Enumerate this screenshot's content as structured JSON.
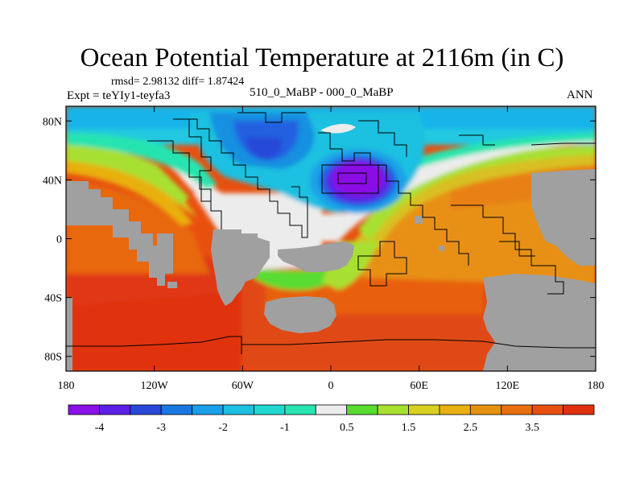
{
  "title": "Ocean Potential Temperature at 2116m (in C)",
  "stats": "rmsd= 2.98132 diff= 1.87424",
  "experiment": "Expt = teYIy1-teyfa3",
  "subtitle": "510_0_MaBP - 000_0_MaBP",
  "season": "ANN",
  "map": {
    "lon_range": [
      -180,
      180
    ],
    "lat_range": [
      -90,
      90
    ],
    "lon_ticks": [
      {
        "value": -180,
        "label": "180"
      },
      {
        "value": -120,
        "label": "120W"
      },
      {
        "value": -60,
        "label": "60W"
      },
      {
        "value": 0,
        "label": "0"
      },
      {
        "value": 60,
        "label": "60E"
      },
      {
        "value": 120,
        "label": "120E"
      },
      {
        "value": 180,
        "label": "180"
      }
    ],
    "lat_ticks": [
      {
        "value": 80,
        "label": "80N"
      },
      {
        "value": 40,
        "label": "40N"
      },
      {
        "value": 0,
        "label": "0"
      },
      {
        "value": -40,
        "label": "40S"
      },
      {
        "value": -80,
        "label": "80S"
      }
    ]
  },
  "colorbar": {
    "colors": [
      "#8a10e6",
      "#5a20e6",
      "#2848d8",
      "#1878e0",
      "#1aa0e8",
      "#1cc0e0",
      "#20d8d0",
      "#28e4b0",
      "#ececec",
      "#58dc30",
      "#a8e030",
      "#d8d020",
      "#e8b010",
      "#e89010",
      "#e87010",
      "#e85010",
      "#e03010"
    ],
    "labels": [
      {
        "index": 1,
        "label": "-4"
      },
      {
        "index": 3,
        "label": "-3"
      },
      {
        "index": 5,
        "label": "-2"
      },
      {
        "index": 7,
        "label": "-1"
      },
      {
        "index": 9,
        "label": "0.5"
      },
      {
        "index": 11,
        "label": "1.5"
      },
      {
        "index": 13,
        "label": "2.5"
      },
      {
        "index": 15,
        "label": "3.5"
      }
    ]
  },
  "colors": {
    "land": "#a0a0a0",
    "frame": "#000000"
  }
}
